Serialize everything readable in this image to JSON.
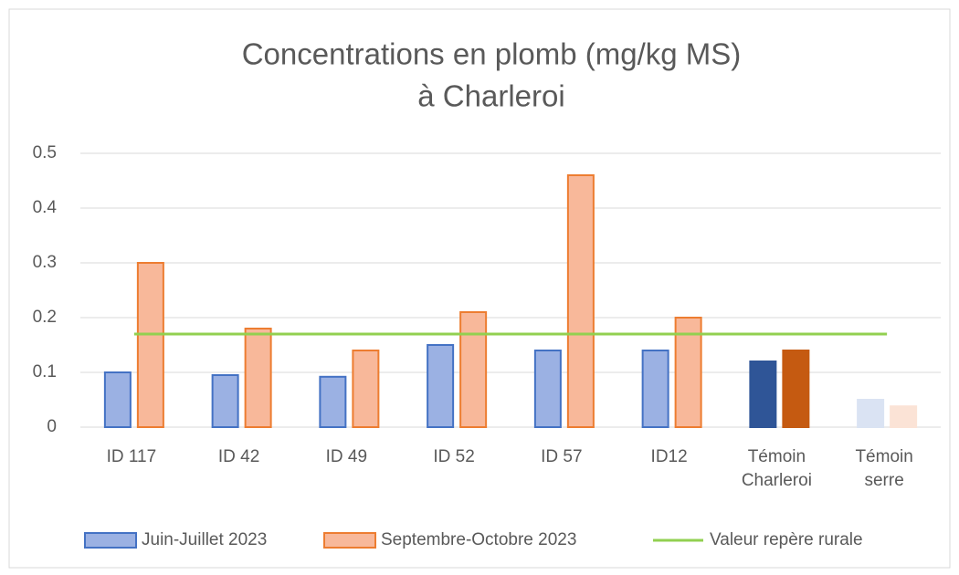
{
  "chart_data": {
    "type": "bar",
    "title": [
      "Concentrations en plomb (mg/kg MS)",
      "à Charleroi"
    ],
    "categories": [
      "ID 117",
      "ID 42",
      "ID 49",
      "ID 52",
      "ID 57",
      "ID12",
      "Témoin Charleroi",
      "Témoin serre"
    ],
    "series": [
      {
        "name": "Juin-Juillet 2023",
        "color": "#9bb1e3",
        "edge": "#4472c4",
        "colors": [
          "#9bb1e3",
          "#9bb1e3",
          "#9bb1e3",
          "#9bb1e3",
          "#9bb1e3",
          "#9bb1e3",
          "#2f5597",
          "#dae3f3"
        ],
        "values": [
          0.1,
          0.095,
          0.092,
          0.15,
          0.14,
          0.14,
          0.12,
          0.05
        ]
      },
      {
        "name": "Septembre-Octobre 2023",
        "color": "#f8b89a",
        "edge": "#ed7d31",
        "colors": [
          "#f8b89a",
          "#f8b89a",
          "#f8b89a",
          "#f8b89a",
          "#f8b89a",
          "#f8b89a",
          "#c55a11",
          "#fbe3d6"
        ],
        "values": [
          0.3,
          0.18,
          0.14,
          0.21,
          0.46,
          0.2,
          0.14,
          0.038
        ]
      }
    ],
    "reference_line": {
      "name": "Valeur repère rurale",
      "color": "#92d050",
      "value": 0.17
    },
    "ylim": [
      0,
      0.5
    ],
    "yticks": [
      0,
      0.1,
      0.2,
      0.3,
      0.4,
      0.5
    ],
    "grid": true
  }
}
